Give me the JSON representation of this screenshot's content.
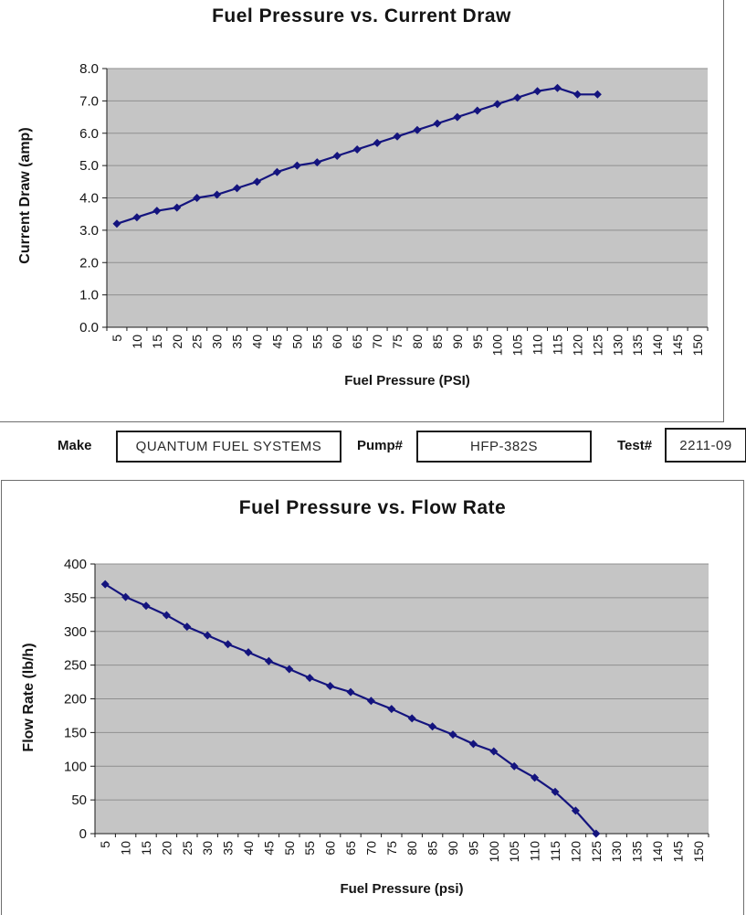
{
  "form": {
    "make_label": "Make",
    "make_value": "QUANTUM FUEL SYSTEMS",
    "pump_label": "Pump#",
    "pump_value": "HFP-382S",
    "test_label": "Test#",
    "test_value": "2211-09"
  },
  "chart_data": [
    {
      "type": "line",
      "title": "Fuel Pressure vs. Current Draw",
      "xlabel": "Fuel Pressure (PSI)",
      "ylabel": "Current Draw (amp)",
      "x": [
        5,
        10,
        15,
        20,
        25,
        30,
        35,
        40,
        45,
        50,
        55,
        60,
        65,
        70,
        75,
        80,
        85,
        90,
        95,
        100,
        105,
        110,
        115,
        120,
        125
      ],
      "values": [
        3.2,
        3.4,
        3.6,
        3.7,
        4.0,
        4.1,
        4.3,
        4.5,
        4.8,
        5.0,
        5.1,
        5.3,
        5.5,
        5.7,
        5.9,
        6.1,
        6.3,
        6.5,
        6.7,
        6.9,
        7.1,
        7.3,
        7.4,
        7.2,
        7.2
      ],
      "x_ticks": [
        "5",
        "10",
        "15",
        "20",
        "25",
        "30",
        "35",
        "40",
        "45",
        "50",
        "55",
        "60",
        "65",
        "70",
        "75",
        "80",
        "85",
        "90",
        "95",
        "100",
        "105",
        "110",
        "115",
        "120",
        "125",
        "130",
        "135",
        "140",
        "145",
        "150"
      ],
      "y_tick_labels": [
        "0.0",
        "1.0",
        "2.0",
        "3.0",
        "4.0",
        "5.0",
        "6.0",
        "7.0",
        "8.0"
      ],
      "ylim": [
        0,
        8
      ],
      "grid": true,
      "legend": "none",
      "marker": "diamond",
      "line_color": "#14147e",
      "plot_bg": "#c5c5c5",
      "grid_color": "#8f8f8f"
    },
    {
      "type": "line",
      "title": "Fuel Pressure vs. Flow Rate",
      "xlabel": "Fuel Pressure (psi)",
      "ylabel": "Flow Rate (lb/h)",
      "x": [
        5,
        10,
        15,
        20,
        25,
        30,
        35,
        40,
        45,
        50,
        55,
        60,
        65,
        70,
        75,
        80,
        85,
        90,
        95,
        100,
        105,
        110,
        115,
        120,
        125
      ],
      "values": [
        370,
        351,
        338,
        324,
        307,
        294,
        281,
        269,
        256,
        244,
        231,
        219,
        210,
        197,
        185,
        171,
        159,
        147,
        133,
        122,
        100,
        83,
        62,
        34,
        0
      ],
      "x_ticks": [
        "5",
        "10",
        "15",
        "20",
        "25",
        "30",
        "35",
        "40",
        "45",
        "50",
        "55",
        "60",
        "65",
        "70",
        "75",
        "80",
        "85",
        "90",
        "95",
        "100",
        "105",
        "110",
        "115",
        "120",
        "125",
        "130",
        "135",
        "140",
        "145",
        "150"
      ],
      "y_tick_labels": [
        "0",
        "50",
        "100",
        "150",
        "200",
        "250",
        "300",
        "350",
        "400"
      ],
      "ylim": [
        0,
        400
      ],
      "grid": true,
      "legend": "none",
      "marker": "diamond",
      "line_color": "#14147e",
      "plot_bg": "#c5c5c5",
      "grid_color": "#8f8f8f"
    }
  ]
}
